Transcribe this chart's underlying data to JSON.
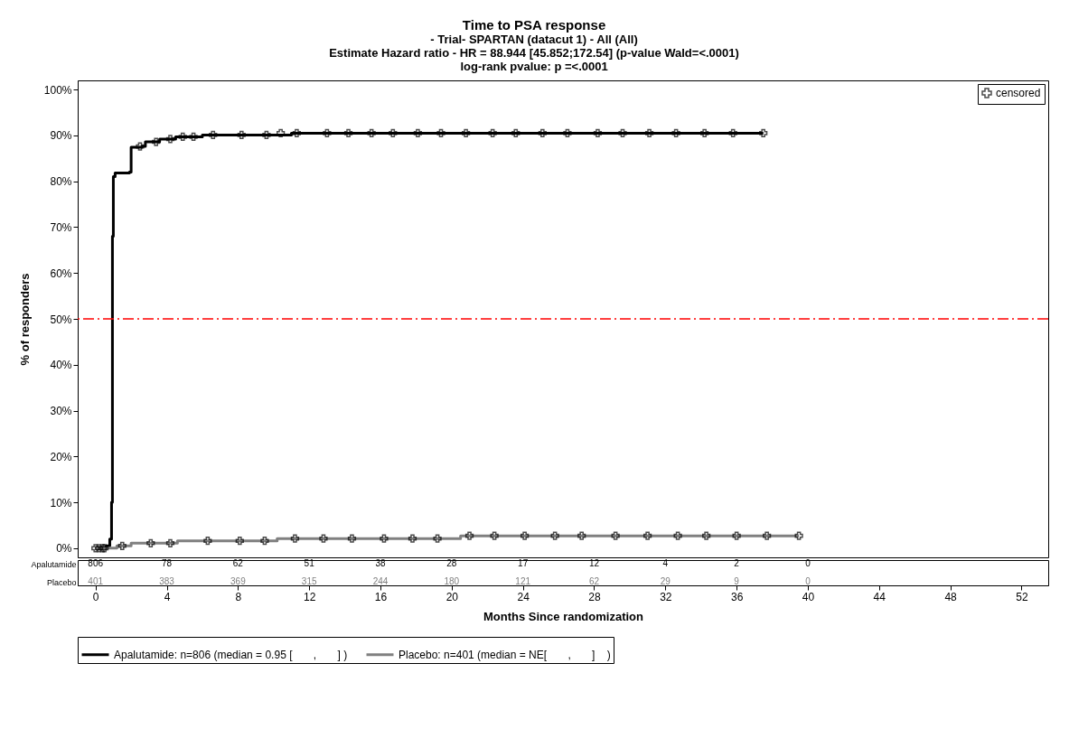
{
  "chart_data": {
    "type": "step",
    "title": "Time to PSA response",
    "subtitle": "-  Trial- SPARTAN (datacut 1) - All (All)\nEstimate Hazard ratio -  HR = 88.944 [45.852;172.54] (p-value Wald=<.0001)\nlog-rank pvalue: p =<.0001",
    "xlabel": "Months Since randomization",
    "ylabel": "% of responders",
    "xlim": [
      -1,
      53.5
    ],
    "xticks": [
      0,
      4,
      8,
      12,
      16,
      20,
      24,
      28,
      32,
      36,
      40,
      44,
      48,
      52
    ],
    "ylim": [
      -2,
      102
    ],
    "yticks": [
      {
        "value": 0,
        "label": "0%"
      },
      {
        "value": 10,
        "label": "10%"
      },
      {
        "value": 20,
        "label": "20%"
      },
      {
        "value": 30,
        "label": "30%"
      },
      {
        "value": 40,
        "label": "40%"
      },
      {
        "value": 50,
        "label": "50%"
      },
      {
        "value": 60,
        "label": "60%"
      },
      {
        "value": 70,
        "label": "70%"
      },
      {
        "value": 80,
        "label": "80%"
      },
      {
        "value": 90,
        "label": "90%"
      },
      {
        "value": 100,
        "label": "100%"
      }
    ],
    "grid": false,
    "legend": "bottom",
    "series": [
      {
        "name": "Apalutamide: n=806 (median = 0.95 [       ,       ] )",
        "color": "#000000",
        "x": [
          0,
          0.6,
          0.8,
          0.9,
          0.95,
          1.0,
          1.1,
          1.9,
          2.0,
          2.6,
          2.8,
          3.6,
          4.5,
          6,
          11,
          37.5
        ],
        "values": [
          0,
          0.5,
          2,
          10,
          68,
          81,
          81.8,
          82,
          87.4,
          87.6,
          88.6,
          89.2,
          89.7,
          90.1,
          90.5,
          90.5
        ]
      },
      {
        "name": "Placebo: n=401 (median = NE[       ,       ]    )",
        "color": "#808080",
        "x": [
          0,
          1.2,
          2.0,
          4.6,
          10.2,
          20.5,
          39.5
        ],
        "values": [
          0,
          0.5,
          1.1,
          1.6,
          2.1,
          2.7,
          2.7
        ]
      },
      {
        "name": "censored",
        "type": "scatter",
        "marker": "cross",
        "color": "#000000",
        "x": [
          0,
          0.2,
          0.4,
          2.5,
          3.4,
          4.2,
          4.9,
          5.5,
          6.6,
          8.2,
          9.6,
          10.4,
          11.3,
          13,
          14.2,
          15.5,
          16.7,
          18.1,
          19.4,
          20.8,
          22.3,
          23.6,
          25.1,
          26.5,
          28.2,
          29.6,
          31.1,
          32.6,
          34.2,
          35.8,
          37.5,
          0.5,
          1.5,
          3.1,
          4.2,
          6.3,
          8.1,
          9.5,
          11.2,
          12.8,
          14.4,
          16.2,
          17.8,
          19.2,
          21.0,
          22.4,
          24.1,
          25.8,
          27.3,
          29.2,
          31.0,
          32.7,
          34.3,
          36.0,
          37.7,
          39.5
        ],
        "values": [
          0,
          0,
          0,
          87.6,
          88.6,
          89.2,
          89.7,
          89.7,
          90.1,
          90.1,
          90.1,
          90.5,
          90.5,
          90.5,
          90.5,
          90.5,
          90.5,
          90.5,
          90.5,
          90.5,
          90.5,
          90.5,
          90.5,
          90.5,
          90.5,
          90.5,
          90.5,
          90.5,
          90.5,
          90.5,
          90.5,
          0,
          0.5,
          1.1,
          1.1,
          1.6,
          1.6,
          1.6,
          2.1,
          2.1,
          2.1,
          2.1,
          2.1,
          2.1,
          2.7,
          2.7,
          2.7,
          2.7,
          2.7,
          2.7,
          2.7,
          2.7,
          2.7,
          2.7,
          2.7,
          2.7
        ]
      }
    ],
    "ref_lines": [
      {
        "axis": "y",
        "value": 50,
        "color": "#ff0000",
        "line_style": "dashed"
      }
    ],
    "annotations": [
      "Apalutamide",
      "Placebo",
      "806",
      "401",
      "78",
      "383",
      "62",
      "369",
      "51",
      "315",
      "38",
      "244",
      "28",
      "180",
      "17",
      "121",
      "12",
      "62",
      "4",
      "29",
      "2",
      "9",
      "0",
      "0"
    ]
  }
}
